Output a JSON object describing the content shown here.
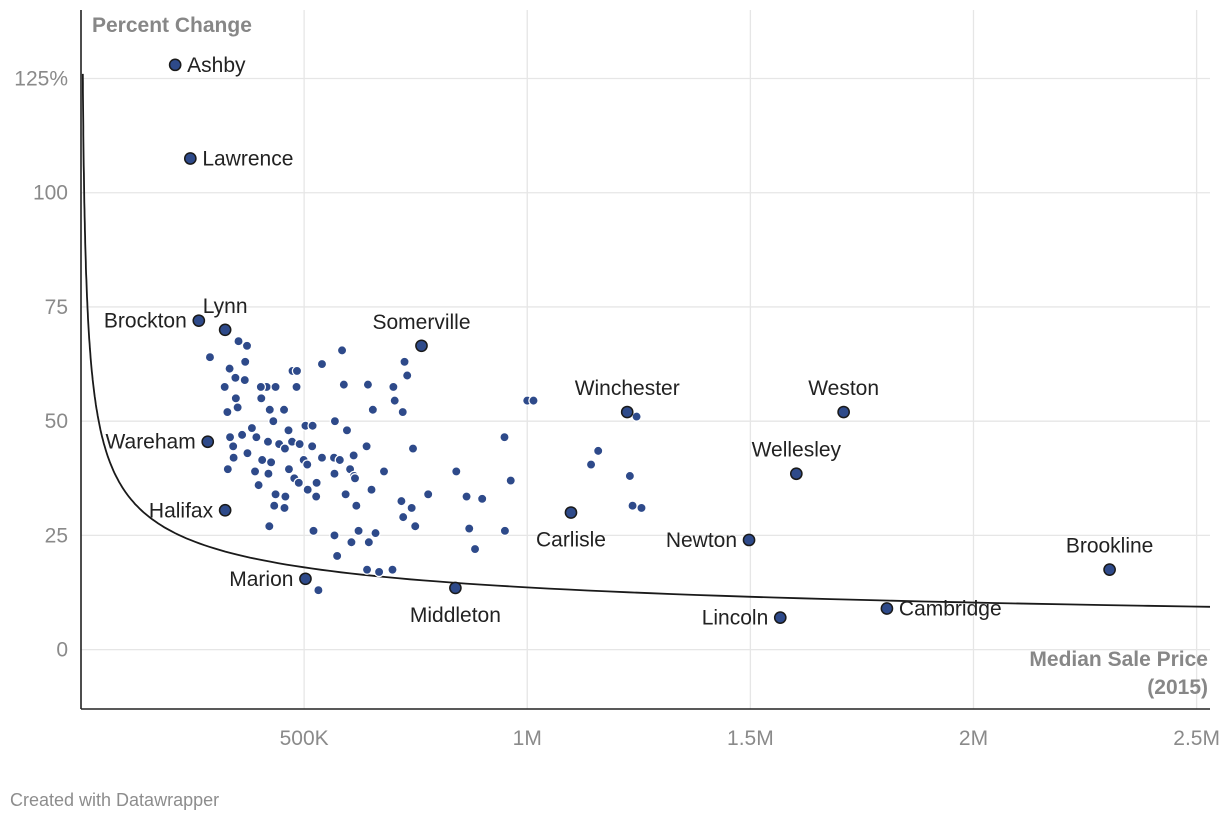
{
  "chart_data": {
    "type": "scatter",
    "title": "",
    "ylabel": "Percent Change",
    "xlabel_lines": [
      "Median Sale Price",
      "(2015)"
    ],
    "xlim": [
      0,
      2530000
    ],
    "ylim": [
      -13,
      140
    ],
    "x_ticks": [
      {
        "value": 500000,
        "label": "500K"
      },
      {
        "value": 1000000,
        "label": "1M"
      },
      {
        "value": 1500000,
        "label": "1.5M"
      },
      {
        "value": 2000000,
        "label": "2M"
      },
      {
        "value": 2500000,
        "label": "2.5M"
      }
    ],
    "y_ticks": [
      {
        "value": 0,
        "label": "0"
      },
      {
        "value": 25,
        "label": "25"
      },
      {
        "value": 50,
        "label": "50"
      },
      {
        "value": 75,
        "label": "75"
      },
      {
        "value": 100,
        "label": "100"
      },
      {
        "value": 125,
        "label": "125%"
      }
    ],
    "dot_color": "#2e4a8a",
    "trendline": {
      "type": "power",
      "a": 3565,
      "b": -0.403
    },
    "labeled_points": [
      {
        "name": "Ashby",
        "x": 211000,
        "y": 128,
        "label_side": "right"
      },
      {
        "name": "Lawrence",
        "x": 245000,
        "y": 107.5,
        "label_side": "right"
      },
      {
        "name": "Brockton",
        "x": 264000,
        "y": 72,
        "label_side": "left"
      },
      {
        "name": "Lynn",
        "x": 323000,
        "y": 70,
        "label_side": "above"
      },
      {
        "name": "Somerville",
        "x": 763000,
        "y": 66.5,
        "label_side": "above"
      },
      {
        "name": "Wareham",
        "x": 284000,
        "y": 45.5,
        "label_side": "left"
      },
      {
        "name": "Halifax",
        "x": 323000,
        "y": 30.5,
        "label_side": "left"
      },
      {
        "name": "Marion",
        "x": 503000,
        "y": 15.5,
        "label_side": "left"
      },
      {
        "name": "Middleton",
        "x": 839000,
        "y": 13.5,
        "label_side": "below"
      },
      {
        "name": "Winchester",
        "x": 1224000,
        "y": 52,
        "label_side": "above"
      },
      {
        "name": "Carlisle",
        "x": 1098000,
        "y": 30,
        "label_side": "below"
      },
      {
        "name": "Weston",
        "x": 1709000,
        "y": 52,
        "label_side": "above"
      },
      {
        "name": "Wellesley",
        "x": 1603000,
        "y": 38.5,
        "label_side": "above"
      },
      {
        "name": "Newton",
        "x": 1497000,
        "y": 24,
        "label_side": "left"
      },
      {
        "name": "Lincoln",
        "x": 1567000,
        "y": 7,
        "label_side": "left"
      },
      {
        "name": "Cambridge",
        "x": 1806000,
        "y": 9,
        "label_side": "right"
      },
      {
        "name": "Brookline",
        "x": 2305000,
        "y": 17.5,
        "label_side": "above"
      }
    ],
    "points": [
      [
        289000,
        64
      ],
      [
        333000,
        61.5
      ],
      [
        353000,
        67.5
      ],
      [
        368000,
        63
      ],
      [
        372000,
        66.5
      ],
      [
        474000,
        61
      ],
      [
        585000,
        65.5
      ],
      [
        540000,
        62.5
      ],
      [
        725000,
        63
      ],
      [
        731000,
        60
      ],
      [
        346000,
        59.5
      ],
      [
        367000,
        59
      ],
      [
        416000,
        57.5
      ],
      [
        436000,
        57.5
      ],
      [
        483000,
        57.5
      ],
      [
        589000,
        58
      ],
      [
        643000,
        58
      ],
      [
        700000,
        57.5
      ],
      [
        322000,
        57.5
      ],
      [
        403000,
        57.5
      ],
      [
        484000,
        61
      ],
      [
        347000,
        55
      ],
      [
        404000,
        55
      ],
      [
        351000,
        53
      ],
      [
        423000,
        52.5
      ],
      [
        455000,
        52.5
      ],
      [
        503000,
        49
      ],
      [
        654000,
        52.5
      ],
      [
        721000,
        52
      ],
      [
        1000000,
        54.5
      ],
      [
        1245000,
        51
      ],
      [
        703000,
        54.5
      ],
      [
        328000,
        52
      ],
      [
        569000,
        50
      ],
      [
        431000,
        50
      ],
      [
        383000,
        48.5
      ],
      [
        465000,
        48
      ],
      [
        519000,
        49
      ],
      [
        596000,
        48
      ],
      [
        473000,
        45.5
      ],
      [
        490000,
        45
      ],
      [
        518000,
        44.5
      ],
      [
        334000,
        46.5
      ],
      [
        361000,
        47
      ],
      [
        393000,
        46.5
      ],
      [
        419000,
        45.5
      ],
      [
        444000,
        45
      ],
      [
        457000,
        44
      ],
      [
        499000,
        41.5
      ],
      [
        540000,
        42
      ],
      [
        567000,
        42
      ],
      [
        611000,
        42.5
      ],
      [
        640000,
        44.5
      ],
      [
        744000,
        44
      ],
      [
        949000,
        46.5
      ],
      [
        1159000,
        43.5
      ],
      [
        341000,
        44.5
      ],
      [
        342000,
        42
      ],
      [
        373000,
        43
      ],
      [
        406000,
        41.5
      ],
      [
        426000,
        41
      ],
      [
        466000,
        39.5
      ],
      [
        507000,
        40.5
      ],
      [
        580000,
        41.5
      ],
      [
        603000,
        39.5
      ],
      [
        612000,
        38
      ],
      [
        329000,
        39.5
      ],
      [
        390000,
        39
      ],
      [
        420000,
        38.5
      ],
      [
        478000,
        37.5
      ],
      [
        488000,
        36.5
      ],
      [
        528000,
        36.5
      ],
      [
        568000,
        38.5
      ],
      [
        614000,
        37.5
      ],
      [
        679000,
        39
      ],
      [
        841000,
        39
      ],
      [
        963000,
        37
      ],
      [
        1143000,
        40.5
      ],
      [
        1230000,
        38
      ],
      [
        398000,
        36
      ],
      [
        436000,
        34
      ],
      [
        458000,
        33.5
      ],
      [
        508000,
        35
      ],
      [
        527000,
        33.5
      ],
      [
        593000,
        34
      ],
      [
        651000,
        35
      ],
      [
        718000,
        32.5
      ],
      [
        741000,
        31
      ],
      [
        778000,
        34
      ],
      [
        864000,
        33.5
      ],
      [
        1236000,
        31.5
      ],
      [
        433000,
        31.5
      ],
      [
        456000,
        31
      ],
      [
        617000,
        31.5
      ],
      [
        899000,
        33
      ],
      [
        722000,
        29
      ],
      [
        749000,
        27
      ],
      [
        422000,
        27
      ],
      [
        521000,
        26
      ],
      [
        568000,
        25
      ],
      [
        606000,
        23.5
      ],
      [
        622000,
        26
      ],
      [
        645000,
        23.5
      ],
      [
        660000,
        25.5
      ],
      [
        870000,
        26.5
      ],
      [
        950000,
        26
      ],
      [
        1256000,
        31
      ],
      [
        641000,
        17.5
      ],
      [
        668000,
        17
      ],
      [
        698000,
        17.5
      ],
      [
        532000,
        13
      ],
      [
        574000,
        20.5
      ],
      [
        883000,
        22
      ],
      [
        1014000,
        54.5
      ]
    ]
  },
  "footer": {
    "credit": "Created with Datawrapper"
  }
}
